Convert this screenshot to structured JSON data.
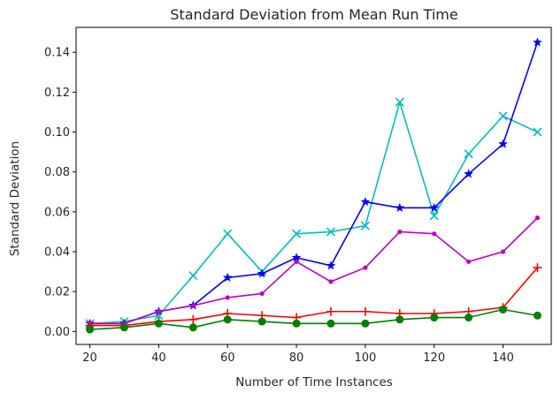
{
  "chart_data": {
    "type": "line",
    "title": "Standard Deviation from Mean Run Time",
    "xlabel": "Number of Time Instances",
    "ylabel": "Standard Deviation",
    "xlim": [
      16,
      154
    ],
    "ylim": [
      -0.0065,
      0.1525
    ],
    "xticks": [
      20,
      40,
      60,
      80,
      100,
      120,
      140
    ],
    "xtick_labels": [
      "20",
      "40",
      "60",
      "80",
      "100",
      "120",
      "140"
    ],
    "yticks": [
      0.0,
      0.02,
      0.04,
      0.06,
      0.08,
      0.1,
      0.12,
      0.14
    ],
    "ytick_labels": [
      "0.00",
      "0.02",
      "0.04",
      "0.06",
      "0.08",
      "0.10",
      "0.12",
      "0.14"
    ],
    "grid": false,
    "x": [
      20,
      30,
      40,
      50,
      60,
      70,
      80,
      90,
      100,
      110,
      120,
      130,
      140,
      150
    ],
    "series": [
      {
        "color": "#00bfbf",
        "marker": "x",
        "values": [
          0.004,
          0.005,
          0.008,
          0.028,
          0.049,
          0.03,
          0.049,
          0.05,
          0.053,
          0.115,
          0.058,
          0.089,
          0.108,
          0.1
        ]
      },
      {
        "color": "#0000ff",
        "marker": "star",
        "values": [
          0.004,
          0.004,
          0.01,
          0.013,
          0.027,
          0.029,
          0.037,
          0.033,
          0.065,
          0.062,
          0.062,
          0.079,
          0.094,
          0.145
        ]
      },
      {
        "color": "#bf00bf",
        "marker": "dot",
        "values": [
          0.004,
          0.004,
          0.01,
          0.013,
          0.017,
          0.019,
          0.035,
          0.025,
          0.032,
          0.05,
          0.049,
          0.035,
          0.04,
          0.057
        ]
      },
      {
        "color": "#ff0000",
        "marker": "plus",
        "values": [
          0.003,
          0.003,
          0.005,
          0.006,
          0.009,
          0.008,
          0.007,
          0.01,
          0.01,
          0.009,
          0.009,
          0.01,
          0.012,
          0.032
        ]
      },
      {
        "color": "#008000",
        "marker": "circle",
        "values": [
          0.001,
          0.002,
          0.004,
          0.002,
          0.006,
          0.005,
          0.004,
          0.004,
          0.004,
          0.006,
          0.007,
          0.007,
          0.011,
          0.008
        ]
      }
    ]
  }
}
